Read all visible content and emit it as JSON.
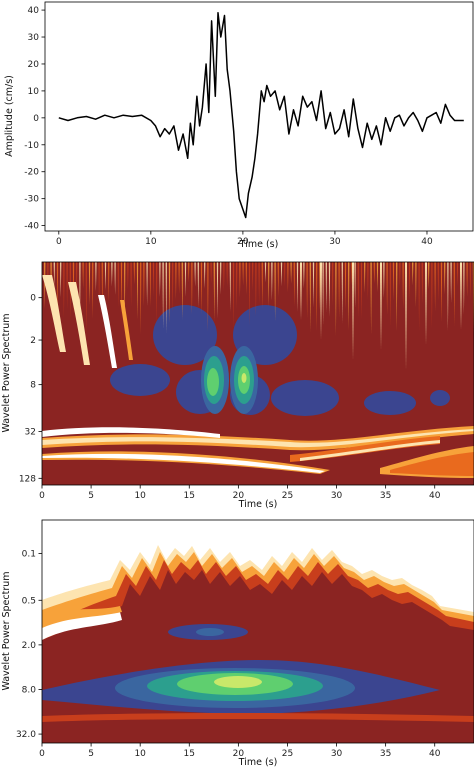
{
  "chart_data": [
    {
      "type": "line",
      "xlabel": "Time (s)",
      "ylabel": "Amplitude (cm/s)",
      "xlim": [
        -1.5,
        45
      ],
      "ylim": [
        -42,
        43
      ],
      "xticks": [
        0,
        10,
        20,
        30,
        40
      ],
      "yticks": [
        40,
        30,
        20,
        10,
        0,
        -10,
        -20,
        -30,
        -40
      ],
      "grid": false,
      "series": [
        {
          "color": "#000000",
          "x": [
            0,
            1,
            2,
            3,
            4,
            5,
            6,
            7,
            8,
            9,
            10,
            10.5,
            11,
            11.5,
            12,
            12.5,
            13,
            13.5,
            14,
            14.3,
            14.6,
            15,
            15.3,
            15.6,
            16,
            16.3,
            16.6,
            17,
            17.3,
            17.6,
            18,
            18.3,
            18.6,
            19,
            19.3,
            19.6,
            20,
            20.3,
            20.6,
            21,
            21.3,
            21.6,
            22,
            22.3,
            22.6,
            23,
            23.5,
            24,
            24.5,
            25,
            25.5,
            26,
            26.5,
            27,
            27.5,
            28,
            28.5,
            29,
            29.5,
            30,
            30.5,
            31,
            31.5,
            32,
            32.5,
            33,
            33.5,
            34,
            34.5,
            35,
            35.5,
            36,
            36.5,
            37,
            37.5,
            38,
            38.5,
            39,
            39.5,
            40,
            40.5,
            41,
            41.5,
            42,
            42.5,
            43,
            44
          ],
          "y": [
            0,
            -1,
            0,
            0.5,
            -0.5,
            1,
            0,
            1,
            0.5,
            1,
            -1,
            -3,
            -7,
            -4,
            -6,
            -3,
            -12,
            -6,
            -15,
            -2,
            -10,
            8,
            -3,
            4,
            20,
            2,
            36,
            8,
            39,
            30,
            38,
            18,
            10,
            -5,
            -20,
            -30,
            -34,
            -37,
            -28,
            -22,
            -15,
            -6,
            10,
            6,
            12,
            8,
            10,
            3,
            8,
            -6,
            3,
            -3,
            8,
            4,
            6,
            -1,
            10,
            -4,
            2,
            -6,
            -4,
            3,
            -7,
            7,
            -4,
            -11,
            -2,
            -8,
            -3,
            -10,
            0,
            -5,
            0,
            1,
            -3,
            0,
            2,
            -1,
            -5,
            0,
            1,
            2,
            -2,
            5,
            1,
            -1,
            -1
          ]
        }
      ]
    },
    {
      "type": "heatmap",
      "xlabel": "Time (s)",
      "ylabel": "Wavelet Power Spectrum",
      "xlim": [
        0,
        44
      ],
      "yticks": [
        "0",
        "2",
        "8",
        "32",
        "128"
      ],
      "xticks": [
        0,
        5,
        10,
        15,
        20,
        25,
        30,
        35,
        40
      ],
      "y_reversed": true,
      "colors": {
        "background": "#8b2422",
        "levels_high": [
          "#3b4590",
          "#3a66a0",
          "#2c9f8e",
          "#5fcf6f",
          "#c9e86a"
        ],
        "levels_low": [
          "#c83e1c",
          "#e96a1e",
          "#f7a23a",
          "#fde4b0",
          "#ffffff"
        ]
      }
    },
    {
      "type": "heatmap",
      "xlabel": "Time (s)",
      "ylabel": "Wavelet Power Spectrum",
      "xlim": [
        0,
        44
      ],
      "yticks": [
        "0.1",
        "0.5",
        "2.0",
        "8.0",
        "32.0"
      ],
      "xticks": [
        0,
        5,
        10,
        15,
        20,
        25,
        30,
        35,
        40
      ],
      "y_reversed": true,
      "colors": {
        "background": "#8b2422",
        "levels_high": [
          "#3b4590",
          "#3a66a0",
          "#2c9f8e",
          "#5fcf6f",
          "#c9e86a"
        ],
        "levels_low": [
          "#c83e1c",
          "#e96a1e",
          "#f7a23a",
          "#fde4b0",
          "#ffffff"
        ]
      }
    }
  ]
}
